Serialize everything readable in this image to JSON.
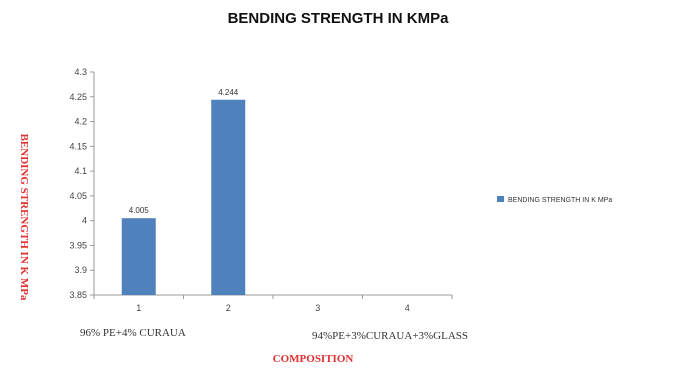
{
  "chart_data": {
    "type": "bar",
    "title": "BENDING STRENGTH IN KMPa",
    "xlabel": "COMPOSITION",
    "ylabel": "BENDING STRENGTH IN K MPa",
    "categories": [
      "1",
      "2",
      "3",
      "4"
    ],
    "series": [
      {
        "name": "BENDING  STRENGTH  IN K MPa",
        "values": [
          4.005,
          4.244,
          null,
          null
        ],
        "color": "#4f81bd"
      }
    ],
    "data_labels": [
      "4.005",
      "4.244",
      "",
      ""
    ],
    "ylim": [
      3.85,
      4.3
    ],
    "yticks": [
      "3.85",
      "3.9",
      "3.95",
      "4",
      "4.05",
      "4.1",
      "4.15",
      "4.2",
      "4.25",
      "4.3"
    ],
    "grid": false,
    "legend_position": "right",
    "annotations": [
      "96% PE+4% CURAUA",
      "94%PE+3%CURAUA+3%GLASS"
    ]
  }
}
